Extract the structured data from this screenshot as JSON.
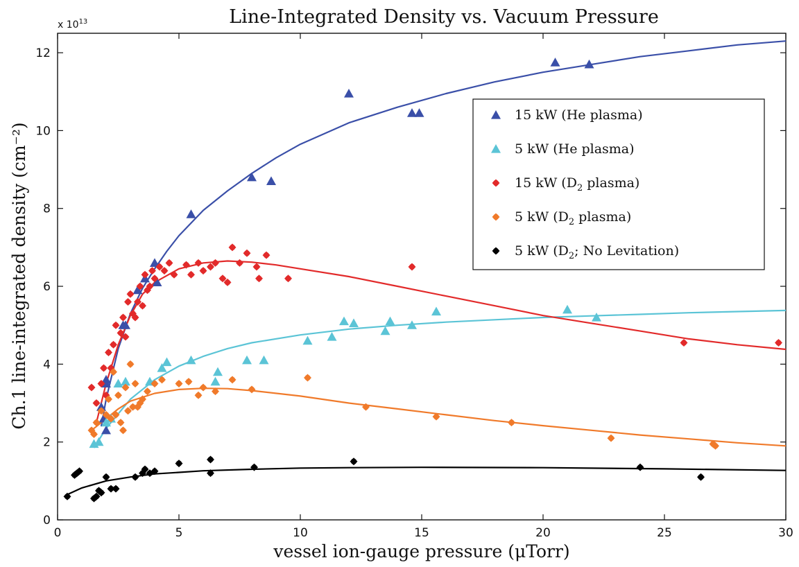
{
  "chart_data": {
    "type": "scatter",
    "title": "Line-Integrated Density vs. Vacuum Pressure",
    "xlabel": "vessel ion-gauge pressure (μTorr)",
    "ylabel": "Ch.1 line-integrated density (cm⁻²)",
    "y_exponent_label": "x 10",
    "y_exponent_power": "13",
    "xlim": [
      0,
      30
    ],
    "ylim": [
      0,
      12.5
    ],
    "x_ticks": [
      0,
      5,
      10,
      15,
      20,
      25,
      30
    ],
    "y_ticks": [
      0,
      2,
      4,
      6,
      8,
      10,
      12
    ],
    "grid": false,
    "legend_position": "top-right",
    "series": [
      {
        "name": "15 kW (He plasma)",
        "legend_prefix": "15 kW (He plasma)",
        "marker": "triangle",
        "color": "#3a4fa8",
        "points": [
          [
            1.8,
            2.9
          ],
          [
            1.9,
            2.6
          ],
          [
            2.0,
            3.5
          ],
          [
            2.0,
            3.6
          ],
          [
            2.0,
            2.3
          ],
          [
            2.7,
            5.0
          ],
          [
            2.8,
            5.0
          ],
          [
            3.3,
            5.9
          ],
          [
            3.6,
            6.2
          ],
          [
            4.0,
            6.6
          ],
          [
            4.1,
            6.1
          ],
          [
            5.5,
            7.85
          ],
          [
            8.0,
            8.8
          ],
          [
            8.8,
            8.7
          ],
          [
            12.0,
            10.95
          ],
          [
            14.6,
            10.45
          ],
          [
            14.9,
            10.45
          ],
          [
            20.5,
            11.75
          ],
          [
            21.9,
            11.7
          ]
        ],
        "fit_x": [
          1.8,
          2.0,
          2.5,
          3.0,
          3.5,
          4.0,
          4.5,
          5.0,
          6.0,
          7.0,
          8.0,
          9.0,
          10.0,
          12.0,
          14.0,
          16.0,
          18.0,
          20.0,
          22.0,
          24.0,
          26.0,
          28.0,
          30.0
        ],
        "fit_y": [
          2.4,
          3.1,
          4.4,
          5.3,
          5.95,
          6.45,
          6.9,
          7.3,
          7.95,
          8.45,
          8.9,
          9.3,
          9.65,
          10.2,
          10.6,
          10.95,
          11.25,
          11.5,
          11.7,
          11.9,
          12.05,
          12.2,
          12.3
        ]
      },
      {
        "name": "5 kW (He plasma)",
        "legend_prefix": "5 kW (He plasma)",
        "marker": "triangle",
        "color": "#5bc4d6",
        "points": [
          [
            1.5,
            1.95
          ],
          [
            1.7,
            2.0
          ],
          [
            2.0,
            2.5
          ],
          [
            2.2,
            2.6
          ],
          [
            2.5,
            3.5
          ],
          [
            2.8,
            3.55
          ],
          [
            3.8,
            3.55
          ],
          [
            4.3,
            3.9
          ],
          [
            4.5,
            4.05
          ],
          [
            5.5,
            4.1
          ],
          [
            6.5,
            3.55
          ],
          [
            6.6,
            3.8
          ],
          [
            7.8,
            4.1
          ],
          [
            8.5,
            4.1
          ],
          [
            10.3,
            4.6
          ],
          [
            11.3,
            4.7
          ],
          [
            11.8,
            5.1
          ],
          [
            12.2,
            5.05
          ],
          [
            13.5,
            4.85
          ],
          [
            13.7,
            5.1
          ],
          [
            14.6,
            5.0
          ],
          [
            15.6,
            5.35
          ],
          [
            21.0,
            5.4
          ],
          [
            22.2,
            5.2
          ]
        ],
        "fit_x": [
          1.5,
          2.0,
          3.0,
          4.0,
          5.0,
          6.0,
          7.0,
          8.0,
          10.0,
          12.0,
          14.0,
          16.0,
          18.0,
          20.0,
          22.0,
          24.0,
          26.0,
          28.0,
          30.0
        ],
        "fit_y": [
          1.85,
          2.35,
          3.1,
          3.6,
          3.95,
          4.2,
          4.4,
          4.55,
          4.75,
          4.9,
          5.0,
          5.08,
          5.14,
          5.2,
          5.24,
          5.28,
          5.32,
          5.35,
          5.38
        ]
      },
      {
        "name": "15 kW (D₂ plasma)",
        "legend_prefix": "15 kW (D",
        "legend_sub": "2",
        "legend_suffix": " plasma)",
        "marker": "diamond",
        "color": "#e22a2a",
        "points": [
          [
            1.4,
            3.4
          ],
          [
            1.6,
            3.0
          ],
          [
            1.8,
            3.5
          ],
          [
            1.9,
            3.9
          ],
          [
            2.0,
            3.2
          ],
          [
            2.1,
            4.3
          ],
          [
            2.2,
            3.9
          ],
          [
            2.3,
            4.5
          ],
          [
            2.4,
            5.0
          ],
          [
            2.6,
            4.8
          ],
          [
            2.7,
            5.2
          ],
          [
            2.8,
            4.7
          ],
          [
            2.9,
            5.6
          ],
          [
            3.0,
            5.8
          ],
          [
            3.1,
            5.3
          ],
          [
            3.2,
            5.2
          ],
          [
            3.3,
            5.6
          ],
          [
            3.4,
            6.0
          ],
          [
            3.5,
            5.5
          ],
          [
            3.6,
            6.3
          ],
          [
            3.7,
            5.9
          ],
          [
            3.8,
            6.0
          ],
          [
            3.9,
            6.4
          ],
          [
            4.0,
            6.2
          ],
          [
            4.2,
            6.5
          ],
          [
            4.4,
            6.4
          ],
          [
            4.6,
            6.6
          ],
          [
            4.8,
            6.3
          ],
          [
            5.3,
            6.55
          ],
          [
            5.5,
            6.3
          ],
          [
            5.8,
            6.6
          ],
          [
            6.0,
            6.4
          ],
          [
            6.3,
            6.5
          ],
          [
            6.5,
            6.6
          ],
          [
            6.8,
            6.2
          ],
          [
            7.0,
            6.1
          ],
          [
            7.2,
            7.0
          ],
          [
            7.5,
            6.6
          ],
          [
            7.8,
            6.85
          ],
          [
            8.2,
            6.5
          ],
          [
            8.3,
            6.2
          ],
          [
            8.6,
            6.8
          ],
          [
            9.5,
            6.2
          ],
          [
            14.6,
            6.5
          ],
          [
            25.8,
            4.55
          ],
          [
            29.7,
            4.55
          ]
        ],
        "fit_x": [
          1.6,
          2.0,
          2.5,
          3.0,
          3.5,
          4.0,
          5.0,
          6.0,
          7.0,
          8.0,
          9.0,
          10.0,
          12.0,
          14.0,
          16.0,
          18.0,
          20.0,
          22.0,
          24.0,
          26.0,
          28.0,
          30.0
        ],
        "fit_y": [
          2.5,
          3.5,
          4.5,
          5.25,
          5.8,
          6.1,
          6.45,
          6.6,
          6.65,
          6.62,
          6.55,
          6.45,
          6.25,
          6.0,
          5.75,
          5.5,
          5.25,
          5.05,
          4.85,
          4.65,
          4.5,
          4.38
        ]
      },
      {
        "name": "5 kW (D₂ plasma)",
        "legend_prefix": "5 kW (D",
        "legend_sub": "2",
        "legend_suffix": " plasma)",
        "marker": "diamond",
        "color": "#f07a2a",
        "points": [
          [
            1.4,
            2.3
          ],
          [
            1.5,
            2.2
          ],
          [
            1.6,
            2.5
          ],
          [
            1.8,
            2.8
          ],
          [
            2.0,
            2.7
          ],
          [
            2.1,
            3.1
          ],
          [
            2.2,
            2.6
          ],
          [
            2.3,
            3.8
          ],
          [
            2.4,
            2.7
          ],
          [
            2.5,
            3.2
          ],
          [
            2.6,
            2.5
          ],
          [
            2.7,
            2.3
          ],
          [
            2.8,
            3.4
          ],
          [
            2.9,
            2.8
          ],
          [
            3.0,
            4.0
          ],
          [
            3.1,
            2.9
          ],
          [
            3.2,
            3.5
          ],
          [
            3.3,
            2.9
          ],
          [
            3.4,
            3.0
          ],
          [
            3.5,
            3.1
          ],
          [
            3.7,
            3.3
          ],
          [
            4.0,
            3.5
          ],
          [
            4.3,
            3.6
          ],
          [
            5.0,
            3.5
          ],
          [
            5.4,
            3.55
          ],
          [
            5.8,
            3.2
          ],
          [
            6.0,
            3.4
          ],
          [
            6.5,
            3.3
          ],
          [
            7.2,
            3.6
          ],
          [
            8.0,
            3.35
          ],
          [
            10.3,
            3.65
          ],
          [
            12.7,
            2.9
          ],
          [
            15.6,
            2.65
          ],
          [
            18.7,
            2.5
          ],
          [
            22.8,
            2.1
          ],
          [
            27.0,
            1.95
          ],
          [
            27.1,
            1.9
          ]
        ],
        "fit_x": [
          1.4,
          2.0,
          2.5,
          3.0,
          4.0,
          5.0,
          6.0,
          7.0,
          8.0,
          10.0,
          12.0,
          14.0,
          16.0,
          18.0,
          20.0,
          22.0,
          24.0,
          26.0,
          28.0,
          30.0
        ],
        "fit_y": [
          2.3,
          2.6,
          2.85,
          3.05,
          3.25,
          3.35,
          3.38,
          3.37,
          3.32,
          3.18,
          3.0,
          2.85,
          2.7,
          2.55,
          2.42,
          2.3,
          2.18,
          2.08,
          1.98,
          1.9
        ]
      },
      {
        "name": "5 kW (D₂; No Levitation)",
        "legend_prefix": "5 kW (D",
        "legend_sub": "2",
        "legend_suffix": "; No Levitation)",
        "marker": "diamond",
        "color": "#000000",
        "points": [
          [
            0.4,
            0.6
          ],
          [
            0.7,
            1.15
          ],
          [
            0.8,
            1.2
          ],
          [
            0.9,
            1.25
          ],
          [
            1.5,
            0.55
          ],
          [
            1.6,
            0.6
          ],
          [
            1.7,
            0.75
          ],
          [
            1.8,
            0.7
          ],
          [
            2.0,
            1.1
          ],
          [
            2.2,
            0.8
          ],
          [
            2.4,
            0.8
          ],
          [
            3.2,
            1.1
          ],
          [
            3.5,
            1.2
          ],
          [
            3.6,
            1.3
          ],
          [
            3.8,
            1.2
          ],
          [
            4.0,
            1.25
          ],
          [
            5.0,
            1.45
          ],
          [
            6.3,
            1.55
          ],
          [
            6.3,
            1.2
          ],
          [
            8.1,
            1.35
          ],
          [
            12.2,
            1.5
          ],
          [
            24.0,
            1.35
          ],
          [
            26.5,
            1.1
          ]
        ],
        "fit_x": [
          0.4,
          1.0,
          2.0,
          3.0,
          4.0,
          5.0,
          6.0,
          8.0,
          10.0,
          12.0,
          15.0,
          20.0,
          25.0,
          30.0
        ],
        "fit_y": [
          0.65,
          0.82,
          1.0,
          1.1,
          1.18,
          1.22,
          1.26,
          1.3,
          1.33,
          1.34,
          1.35,
          1.34,
          1.31,
          1.27
        ]
      }
    ]
  }
}
